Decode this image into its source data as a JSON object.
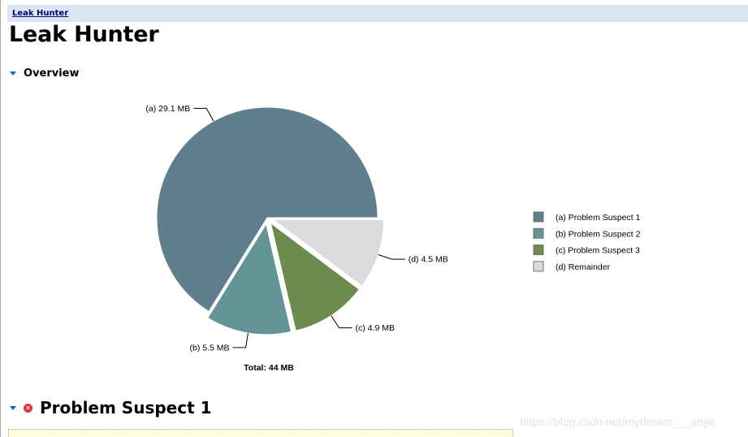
{
  "breadcrumb": {
    "label": "Leak Hunter"
  },
  "page": {
    "title": "Leak Hunter"
  },
  "overview": {
    "label": "Overview"
  },
  "suspect_section": {
    "label": "Problem Suspect 1"
  },
  "watermark": "https://blog.csdn.net/mydream___anjie",
  "colors": {
    "breadcrumb_bg": "#dce6f0",
    "link": "#000080",
    "toggle_arrow": "#1e5fa8",
    "error": "#d93a3a"
  },
  "chart_data": {
    "type": "pie",
    "title": "",
    "total_label": "Total: 44 MB",
    "unit": "MB",
    "total": 44,
    "legend_placement": "right",
    "slices": [
      {
        "id": "(a)",
        "name": "Problem Suspect 1",
        "value": 29.1,
        "label": "29.1 MB",
        "color": "#607f8e"
      },
      {
        "id": "(b)",
        "name": "Problem Suspect 2",
        "value": 5.5,
        "label": "5.5 MB",
        "color": "#639596"
      },
      {
        "id": "(c)",
        "name": "Problem Suspect 3",
        "value": 4.9,
        "label": "4.9 MB",
        "color": "#6d8b4d"
      },
      {
        "id": "(d)",
        "name": "Remainder",
        "value": 4.5,
        "label": "4.5 MB",
        "color": "#dbdbdb"
      }
    ]
  }
}
